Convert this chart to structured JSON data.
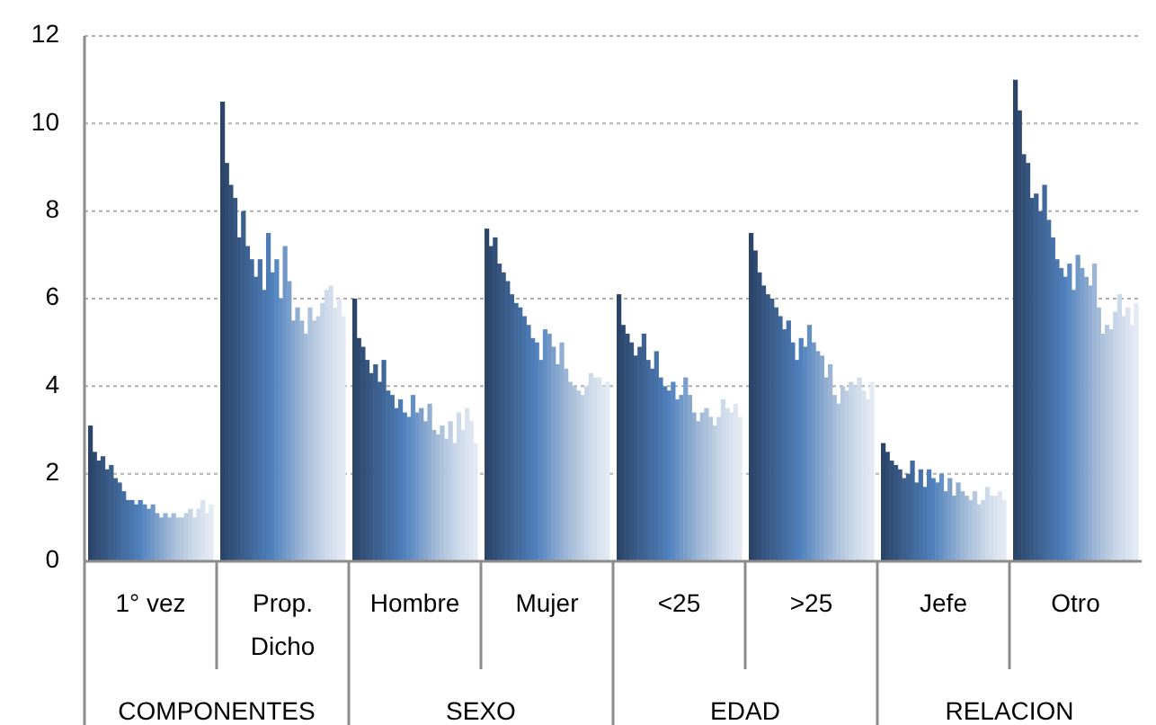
{
  "chart_data": {
    "type": "bar",
    "categories": [
      "1° vez",
      "Prop. Dicho",
      "Hombre",
      "Mujer",
      "<25",
      ">25",
      "Jefe",
      "Otro"
    ],
    "annotations": [
      "COMPONENTES",
      "SEXO",
      "EDAD",
      "RELACION"
    ],
    "ylim": [
      0,
      12
    ],
    "yticks": [
      0,
      2,
      4,
      6,
      8,
      10,
      12
    ],
    "grid": "y",
    "series": [
      {
        "color": "#2c4468",
        "values": [
          3.1,
          10.5,
          6.0,
          7.6,
          6.1,
          7.5,
          2.7,
          11.0
        ]
      },
      {
        "color": "#2f4a70",
        "values": [
          2.5,
          9.1,
          5.1,
          7.2,
          5.4,
          7.1,
          2.5,
          10.3
        ]
      },
      {
        "color": "#324f77",
        "values": [
          2.3,
          8.6,
          4.9,
          7.4,
          5.2,
          6.6,
          2.3,
          9.3
        ]
      },
      {
        "color": "#35547e",
        "values": [
          2.4,
          8.3,
          4.6,
          6.8,
          5.0,
          6.3,
          2.2,
          9.1
        ]
      },
      {
        "color": "#385985",
        "values": [
          2.1,
          7.4,
          4.3,
          6.6,
          4.7,
          6.1,
          2.1,
          8.3
        ]
      },
      {
        "color": "#3b5e8c",
        "values": [
          2.2,
          8.0,
          4.5,
          6.4,
          4.9,
          6.0,
          1.9,
          8.4
        ]
      },
      {
        "color": "#3e6393",
        "values": [
          1.9,
          7.2,
          4.1,
          6.1,
          5.2,
          5.8,
          2.0,
          8.0
        ]
      },
      {
        "color": "#41689a",
        "values": [
          1.8,
          6.9,
          4.6,
          5.9,
          4.6,
          5.6,
          2.3,
          8.6
        ]
      },
      {
        "color": "#446da1",
        "values": [
          1.6,
          6.5,
          3.9,
          5.8,
          4.4,
          5.3,
          1.8,
          7.8
        ]
      },
      {
        "color": "#4772a8",
        "values": [
          1.4,
          6.9,
          3.8,
          5.6,
          4.8,
          5.5,
          2.1,
          7.4
        ]
      },
      {
        "color": "#4a77af",
        "values": [
          1.4,
          6.2,
          3.5,
          5.4,
          4.2,
          5.0,
          1.7,
          6.9
        ]
      },
      {
        "color": "#4d7cb6",
        "values": [
          1.3,
          7.5,
          3.7,
          5.1,
          4.0,
          4.6,
          2.1,
          6.7
        ]
      },
      {
        "color": "#4f81bd",
        "values": [
          1.4,
          6.6,
          3.4,
          5.0,
          3.9,
          5.1,
          1.9,
          6.5
        ]
      },
      {
        "color": "#5a88c0",
        "values": [
          1.3,
          6.9,
          3.3,
          4.6,
          4.1,
          4.9,
          1.8,
          6.8
        ]
      },
      {
        "color": "#6590c4",
        "values": [
          1.2,
          6.0,
          3.8,
          5.3,
          3.7,
          5.4,
          2.0,
          6.2
        ]
      },
      {
        "color": "#7097c7",
        "values": [
          1.3,
          7.2,
          3.4,
          5.2,
          3.8,
          5.0,
          1.6,
          7.0
        ]
      },
      {
        "color": "#7b9fcb",
        "values": [
          1.1,
          6.4,
          3.5,
          4.9,
          4.2,
          4.8,
          1.9,
          6.7
        ]
      },
      {
        "color": "#86a6ce",
        "values": [
          1.0,
          5.5,
          3.2,
          4.5,
          3.8,
          4.7,
          1.5,
          6.5
        ]
      },
      {
        "color": "#91aed2",
        "values": [
          1.1,
          5.8,
          3.6,
          5.0,
          3.4,
          4.2,
          1.8,
          6.3
        ]
      },
      {
        "color": "#9cb5d5",
        "values": [
          1.0,
          5.5,
          3.0,
          4.4,
          3.2,
          4.5,
          1.6,
          6.8
        ]
      },
      {
        "color": "#a5bcd9",
        "values": [
          1.1,
          5.2,
          2.9,
          4.1,
          3.4,
          3.8,
          1.5,
          5.8
        ]
      },
      {
        "color": "#adc2dc",
        "values": [
          1.0,
          5.8,
          3.1,
          4.0,
          3.5,
          3.6,
          1.4,
          5.2
        ]
      },
      {
        "color": "#b5c8e0",
        "values": [
          1.0,
          5.5,
          2.8,
          3.9,
          3.3,
          4.0,
          1.6,
          5.4
        ]
      },
      {
        "color": "#bdcee3",
        "values": [
          1.1,
          5.6,
          3.2,
          3.8,
          3.1,
          3.9,
          1.3,
          5.3
        ]
      },
      {
        "color": "#c5d4e7",
        "values": [
          1.2,
          5.9,
          2.7,
          4.0,
          3.3,
          4.1,
          1.4,
          5.7
        ]
      },
      {
        "color": "#cddaea",
        "values": [
          1.0,
          6.2,
          3.4,
          4.3,
          3.7,
          4.0,
          1.7,
          6.1
        ]
      },
      {
        "color": "#d3deed",
        "values": [
          1.2,
          6.3,
          3.0,
          4.2,
          3.5,
          4.2,
          1.5,
          5.6
        ]
      },
      {
        "color": "#d9e2ef",
        "values": [
          1.4,
          5.8,
          3.5,
          4.2,
          3.4,
          3.9,
          1.5,
          5.8
        ]
      },
      {
        "color": "#dfe6f2",
        "values": [
          1.1,
          6.0,
          3.2,
          4.0,
          3.6,
          3.7,
          1.6,
          5.4
        ]
      },
      {
        "color": "#e4eaf4",
        "values": [
          1.3,
          5.6,
          2.7,
          4.1,
          3.3,
          4.1,
          1.4,
          5.9
        ]
      }
    ]
  }
}
